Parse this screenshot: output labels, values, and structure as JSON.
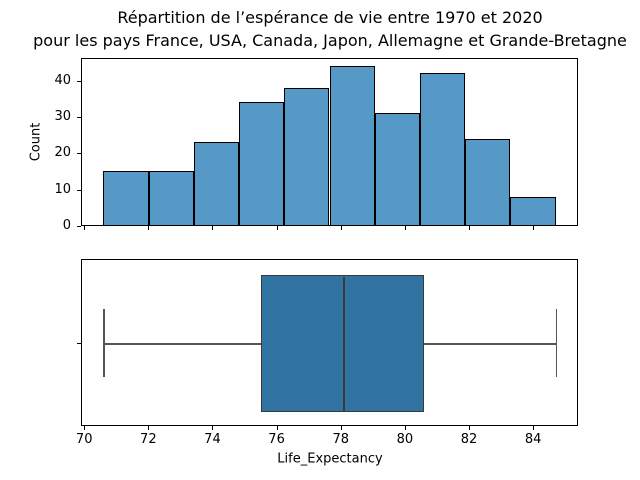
{
  "title": {
    "line1": "Répartition de l’espérance de vie entre 1970 et 2020",
    "line2": "pour les pays France, USA, Canada, Japon, Allemagne et Grande-Bretagne"
  },
  "chart_data": [
    {
      "type": "bar",
      "subtype": "histogram",
      "ylabel": "Count",
      "xlabel": "",
      "bin_edges": [
        70.6,
        72.01,
        73.42,
        74.83,
        76.24,
        77.65,
        79.06,
        80.47,
        81.88,
        83.29,
        84.7
      ],
      "counts": [
        15,
        15,
        23,
        34,
        38,
        44,
        31,
        42,
        24,
        8
      ],
      "xlim": [
        69.9,
        85.4
      ],
      "ylim": [
        0,
        46.2
      ],
      "xticks": [
        70,
        72,
        74,
        76,
        78,
        80,
        82,
        84
      ],
      "xtick_labels_visible": false,
      "yticks": [
        0,
        10,
        20,
        30,
        40
      ],
      "grid": false,
      "legend": "none",
      "bar_color": "#5799c6",
      "bar_edge_color": "#000000"
    },
    {
      "type": "boxplot",
      "orientation": "horizontal",
      "xlabel": "Life_Expectancy",
      "whisker_low": 70.6,
      "q1": 75.5,
      "median": 78.1,
      "q3": 80.6,
      "whisker_high": 84.7,
      "outliers": [],
      "xlim": [
        69.9,
        85.4
      ],
      "xticks": [
        70,
        72,
        74,
        76,
        78,
        80,
        82,
        84
      ],
      "xtick_labels_visible": true,
      "grid": false,
      "box_color": "#3274a1",
      "edge_color": "#3a3a3a",
      "whisker_color": "#555555"
    }
  ]
}
